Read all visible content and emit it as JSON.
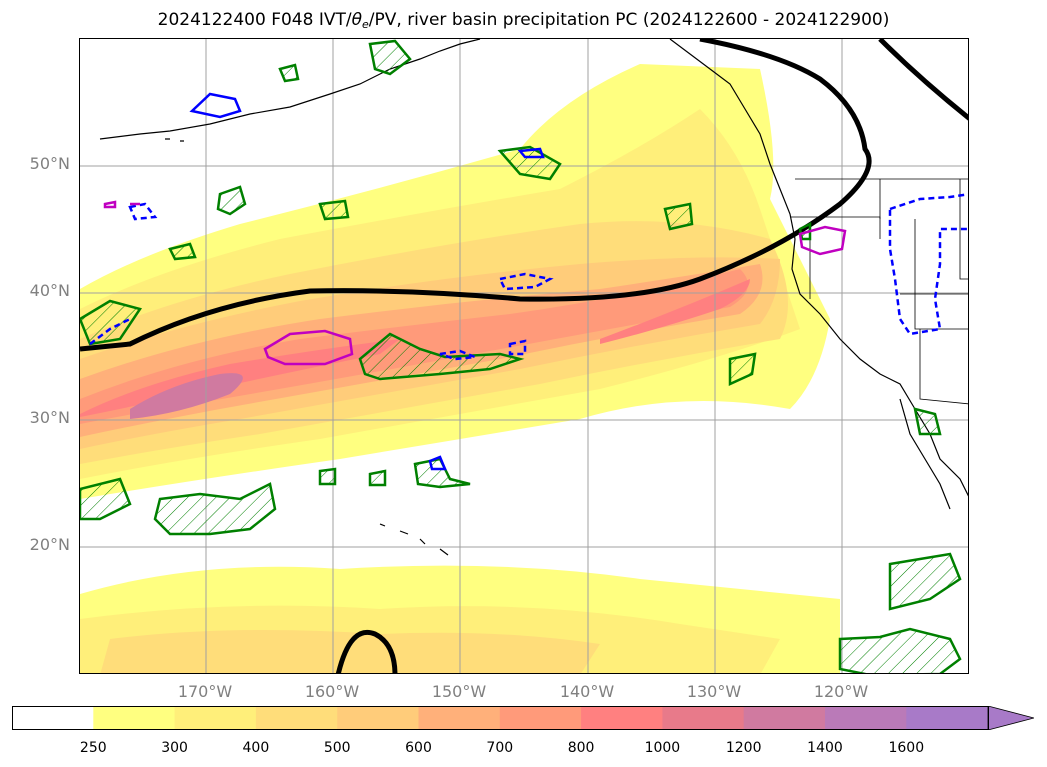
{
  "title": {
    "prefix": "2024122400 F048 IVT/",
    "theta": "θ",
    "sub": "e",
    "suffix": "/PV, river basin precipitation PC (2024122600 - 2024122900)"
  },
  "axes": {
    "lat_labels": [
      "50°N",
      "40°N",
      "30°N",
      "20°N"
    ],
    "lon_labels": [
      "170°W",
      "160°W",
      "150°W",
      "140°W",
      "130°W",
      "120°W"
    ]
  },
  "colorbar": {
    "labels": [
      "250",
      "300",
      "400",
      "500",
      "600",
      "700",
      "800",
      "1000",
      "1200",
      "1400",
      "1600"
    ],
    "colors": [
      "#ffffff",
      "#ffff80",
      "#ffef7a",
      "#ffdd7a",
      "#ffcc7a",
      "#ffb07a",
      "#ff9a7a",
      "#ff8080",
      "#e87a8a",
      "#d07aa0",
      "#ba7ab8",
      "#a87ac8"
    ]
  },
  "colors": {
    "pv_contour": "#000000",
    "theta_positive": "#008000",
    "theta_negative": "#0000ff",
    "precip": "#c000c0",
    "coast": "#000000",
    "grid": "#a0a0a0"
  }
}
